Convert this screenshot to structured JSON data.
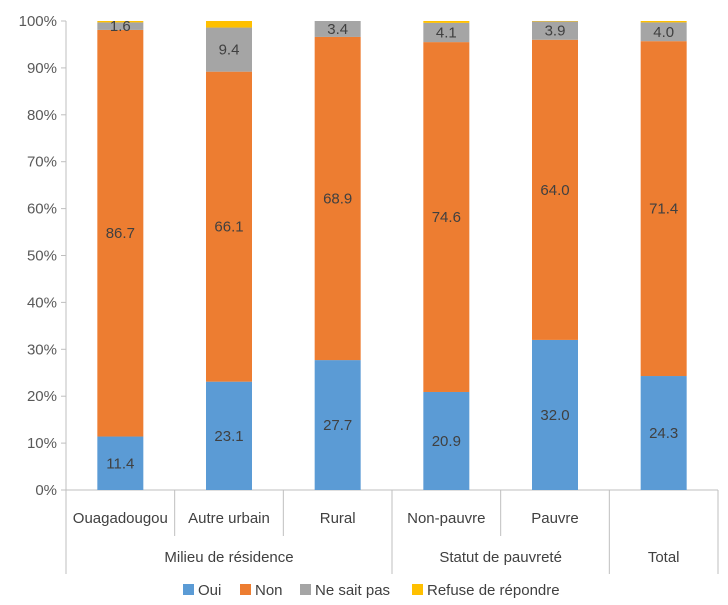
{
  "chart_data": {
    "type": "bar",
    "stacked": true,
    "percent": true,
    "categories": [
      "Ouagadougou",
      "Autre urbain",
      "Rural",
      "Non-pauvre",
      "Pauvre",
      ""
    ],
    "groups": [
      {
        "label": "Milieu de résidence",
        "start": 0,
        "end": 2
      },
      {
        "label": "Statut de pauvreté",
        "start": 3,
        "end": 4
      },
      {
        "label": "Total",
        "start": 5,
        "end": 5
      }
    ],
    "series": [
      {
        "name": "Oui",
        "color": "#5B9BD5",
        "values": [
          11.4,
          23.1,
          27.7,
          20.9,
          32.0,
          24.3
        ],
        "labels": [
          "11.4",
          "23.1",
          "27.7",
          "20.9",
          "32.0",
          "24.3"
        ]
      },
      {
        "name": "Non",
        "color": "#ED7D31",
        "values": [
          86.7,
          66.1,
          68.9,
          74.6,
          64.0,
          71.4
        ],
        "labels": [
          "86.7",
          "66.1",
          "68.9",
          "74.6",
          "64.0",
          "71.4"
        ]
      },
      {
        "name": "Ne sait pas",
        "color": "#A5A5A5",
        "values": [
          1.6,
          9.4,
          3.4,
          4.1,
          3.9,
          4.0
        ],
        "labels": [
          "1.6",
          "9.4",
          "3.4",
          "4.1",
          "3.9",
          "4.0"
        ]
      },
      {
        "name": "Refuse de répondre",
        "color": "#FFC000",
        "values": [
          0.3,
          1.4,
          0.0,
          0.4,
          0.1,
          0.3
        ],
        "labels": [
          "",
          "",
          "",
          "",
          "",
          ""
        ]
      }
    ],
    "y_ticks": [
      "0%",
      "10%",
      "20%",
      "30%",
      "40%",
      "50%",
      "60%",
      "70%",
      "80%",
      "90%",
      "100%"
    ],
    "ylim": [
      0,
      100
    ],
    "grid": false,
    "legend_position": "bottom"
  }
}
